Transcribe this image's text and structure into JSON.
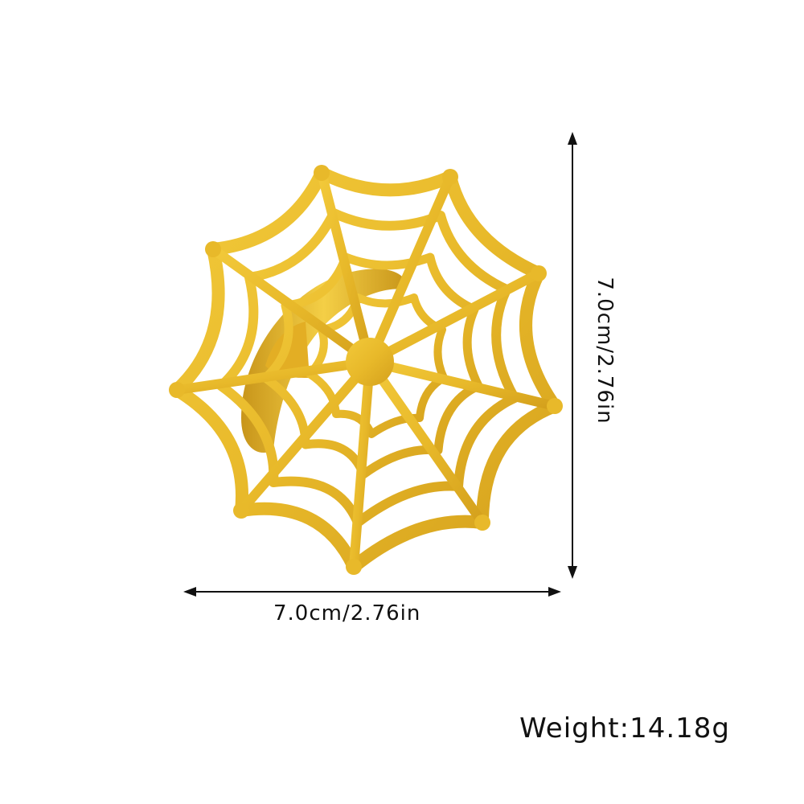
{
  "product": {
    "name_icon": "spider-web-ring-image",
    "metal_color": "#E8B92A",
    "metal_shadow": "#C9971A",
    "band_color": "#D9A520"
  },
  "dimensions": {
    "width_label": "7.0cm/2.76in",
    "height_label": "7.0cm/2.76in",
    "arrow_color": "#111111"
  },
  "weight": {
    "label": "Weight:14.18g"
  }
}
